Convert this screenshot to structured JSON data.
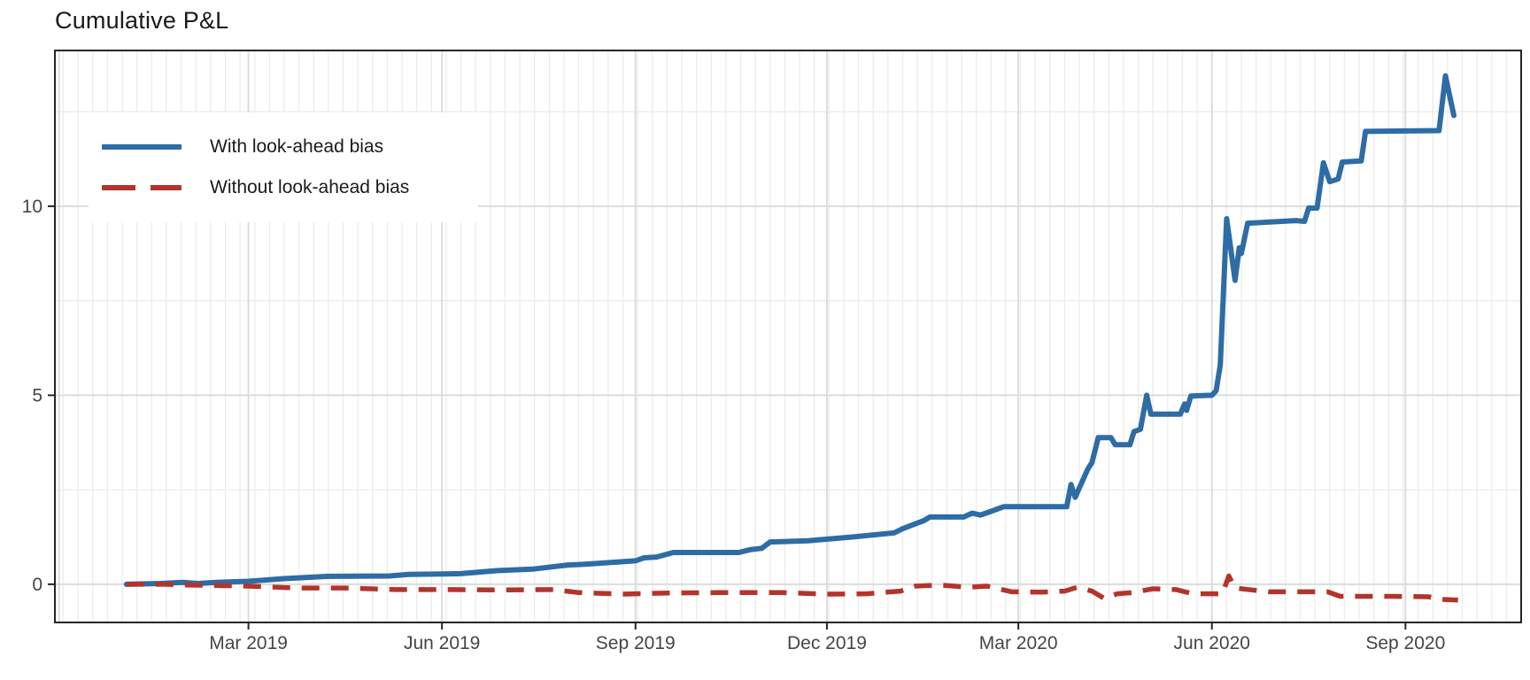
{
  "title": "Cumulative P&L",
  "legend": {
    "items": [
      {
        "label": "With look-ahead bias",
        "color": "#2e6ca5",
        "style": "solid"
      },
      {
        "label": "Without look-ahead bias",
        "color": "#b2342b",
        "style": "dashed"
      }
    ]
  },
  "colors": {
    "with_bias": "#2e6ca5",
    "without_bias": "#b2342b",
    "grid_major": "#dcdcdc",
    "grid_minor": "#ececec",
    "panel_border": "#262626",
    "tick_text": "#454545"
  },
  "chart_data": {
    "type": "line",
    "title": "Cumulative P&L",
    "xlabel": "",
    "ylabel": "",
    "x_range": [
      "2018-11-29",
      "2020-10-26"
    ],
    "y_range": [
      -1.01,
      14.12
    ],
    "grid": "on",
    "minor_grid_x": "weekly",
    "minor_grid_y": [
      2.5,
      7.5,
      12.5
    ],
    "x_ticks": [
      {
        "date": "2019-03-01",
        "label": "Mar 2019"
      },
      {
        "date": "2019-06-01",
        "label": "Jun 2019"
      },
      {
        "date": "2019-09-01",
        "label": "Sep 2019"
      },
      {
        "date": "2019-12-01",
        "label": "Dec 2019"
      },
      {
        "date": "2020-03-01",
        "label": "Mar 2020"
      },
      {
        "date": "2020-06-01",
        "label": "Jun 2020"
      },
      {
        "date": "2020-09-01",
        "label": "Sep 2020"
      }
    ],
    "major_grid_x": [
      "2018-12-01",
      "2019-03-01",
      "2019-06-01",
      "2019-09-01",
      "2019-12-01",
      "2020-03-01",
      "2020-06-01",
      "2020-09-01"
    ],
    "y_ticks": [
      0,
      5,
      10
    ],
    "legend_position": "top-left-inside",
    "series": [
      {
        "name": "With look-ahead bias",
        "color": "#2e6ca5",
        "line": "solid",
        "width": 6,
        "points": [
          [
            "2019-01-02",
            0.0
          ],
          [
            "2019-01-18",
            0.02
          ],
          [
            "2019-01-29",
            0.05
          ],
          [
            "2019-02-05",
            0.02
          ],
          [
            "2019-02-14",
            0.05
          ],
          [
            "2019-03-01",
            0.08
          ],
          [
            "2019-03-18",
            0.15
          ],
          [
            "2019-04-08",
            0.21
          ],
          [
            "2019-05-07",
            0.22
          ],
          [
            "2019-05-16",
            0.26
          ],
          [
            "2019-06-10",
            0.28
          ],
          [
            "2019-06-27",
            0.36
          ],
          [
            "2019-07-14",
            0.4
          ],
          [
            "2019-07-31",
            0.51
          ],
          [
            "2019-08-08",
            0.53
          ],
          [
            "2019-09-01",
            0.62
          ],
          [
            "2019-09-05",
            0.7
          ],
          [
            "2019-09-11",
            0.72
          ],
          [
            "2019-09-19",
            0.84
          ],
          [
            "2019-10-20",
            0.84
          ],
          [
            "2019-10-26",
            0.92
          ],
          [
            "2019-10-31",
            0.95
          ],
          [
            "2019-11-04",
            1.12
          ],
          [
            "2019-11-22",
            1.15
          ],
          [
            "2019-12-13",
            1.25
          ],
          [
            "2020-01-02",
            1.36
          ],
          [
            "2020-01-06",
            1.47
          ],
          [
            "2020-01-16",
            1.68
          ],
          [
            "2020-01-19",
            1.78
          ],
          [
            "2020-02-04",
            1.78
          ],
          [
            "2020-02-08",
            1.88
          ],
          [
            "2020-02-12",
            1.83
          ],
          [
            "2020-02-17",
            1.93
          ],
          [
            "2020-02-23",
            2.05
          ],
          [
            "2020-03-24",
            2.05
          ],
          [
            "2020-03-26",
            2.64
          ],
          [
            "2020-03-28",
            2.3
          ],
          [
            "2020-04-03",
            3.05
          ],
          [
            "2020-04-05",
            3.22
          ],
          [
            "2020-04-08",
            3.88
          ],
          [
            "2020-04-14",
            3.88
          ],
          [
            "2020-04-16",
            3.69
          ],
          [
            "2020-04-23",
            3.69
          ],
          [
            "2020-04-25",
            4.04
          ],
          [
            "2020-04-28",
            4.1
          ],
          [
            "2020-05-01",
            5.0
          ],
          [
            "2020-05-03",
            4.5
          ],
          [
            "2020-05-17",
            4.5
          ],
          [
            "2020-05-19",
            4.77
          ],
          [
            "2020-05-20",
            4.6
          ],
          [
            "2020-05-22",
            4.98
          ],
          [
            "2020-06-01",
            5.0
          ],
          [
            "2020-06-03",
            5.12
          ],
          [
            "2020-06-05",
            5.8
          ],
          [
            "2020-06-08",
            9.67
          ],
          [
            "2020-06-12",
            8.04
          ],
          [
            "2020-06-14",
            8.9
          ],
          [
            "2020-06-15",
            8.75
          ],
          [
            "2020-06-18",
            9.55
          ],
          [
            "2020-07-11",
            9.62
          ],
          [
            "2020-07-15",
            9.6
          ],
          [
            "2020-07-17",
            9.95
          ],
          [
            "2020-07-21",
            9.95
          ],
          [
            "2020-07-24",
            11.15
          ],
          [
            "2020-07-27",
            10.65
          ],
          [
            "2020-07-31",
            10.72
          ],
          [
            "2020-08-02",
            11.17
          ],
          [
            "2020-08-11",
            11.2
          ],
          [
            "2020-08-13",
            11.98
          ],
          [
            "2020-09-17",
            12.0
          ],
          [
            "2020-09-20",
            13.45
          ],
          [
            "2020-09-24",
            12.4
          ]
        ]
      },
      {
        "name": "Without look-ahead bias",
        "color": "#b2342b",
        "line": "dashed",
        "width": 5.5,
        "points": [
          [
            "2019-01-02",
            0.0
          ],
          [
            "2019-01-20",
            0.0
          ],
          [
            "2019-01-31",
            -0.02
          ],
          [
            "2019-02-22",
            -0.04
          ],
          [
            "2019-03-01",
            -0.05
          ],
          [
            "2019-03-24",
            -0.1
          ],
          [
            "2019-04-16",
            -0.1
          ],
          [
            "2019-05-10",
            -0.14
          ],
          [
            "2019-06-05",
            -0.14
          ],
          [
            "2019-07-01",
            -0.15
          ],
          [
            "2019-07-24",
            -0.14
          ],
          [
            "2019-08-05",
            -0.22
          ],
          [
            "2019-08-26",
            -0.26
          ],
          [
            "2019-09-17",
            -0.23
          ],
          [
            "2019-10-11",
            -0.22
          ],
          [
            "2019-11-10",
            -0.22
          ],
          [
            "2019-12-01",
            -0.26
          ],
          [
            "2019-12-20",
            -0.25
          ],
          [
            "2020-01-05",
            -0.18
          ],
          [
            "2020-01-12",
            -0.05
          ],
          [
            "2020-01-24",
            -0.02
          ],
          [
            "2020-02-06",
            -0.08
          ],
          [
            "2020-02-15",
            -0.05
          ],
          [
            "2020-02-27",
            -0.2
          ],
          [
            "2020-03-12",
            -0.21
          ],
          [
            "2020-03-23",
            -0.18
          ],
          [
            "2020-03-29",
            -0.08
          ],
          [
            "2020-04-05",
            -0.18
          ],
          [
            "2020-04-11",
            -0.38
          ],
          [
            "2020-04-17",
            -0.25
          ],
          [
            "2020-04-24",
            -0.22
          ],
          [
            "2020-05-04",
            -0.12
          ],
          [
            "2020-05-15",
            -0.14
          ],
          [
            "2020-05-23",
            -0.25
          ],
          [
            "2020-06-06",
            -0.25
          ],
          [
            "2020-06-09",
            0.22
          ],
          [
            "2020-06-12",
            -0.1
          ],
          [
            "2020-06-20",
            -0.15
          ],
          [
            "2020-06-28",
            -0.2
          ],
          [
            "2020-07-26",
            -0.2
          ],
          [
            "2020-08-01",
            -0.32
          ],
          [
            "2020-08-16",
            -0.32
          ],
          [
            "2020-08-26",
            -0.32
          ],
          [
            "2020-09-12",
            -0.33
          ],
          [
            "2020-09-18",
            -0.4
          ],
          [
            "2020-09-26",
            -0.42
          ]
        ]
      }
    ]
  }
}
